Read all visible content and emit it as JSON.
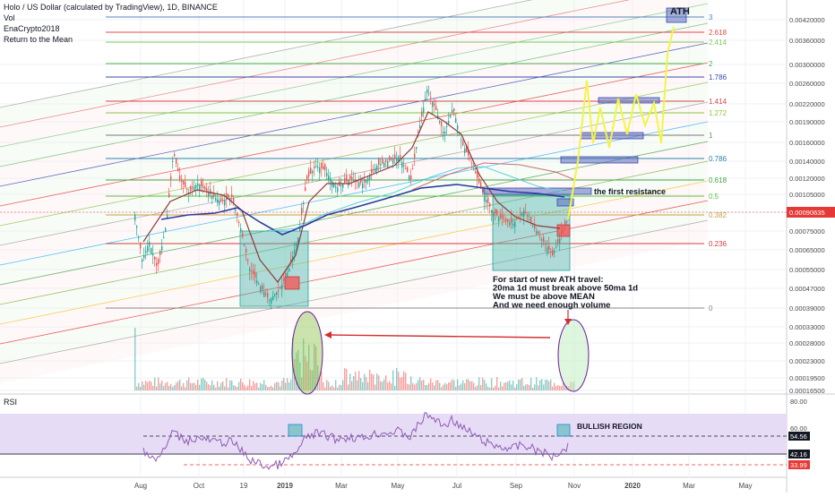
{
  "header": {
    "title": "Holo / US Dollar (calculated by TradingView), 1D, BINANCE",
    "vol_label": "Vol",
    "author": "EnaCrypto2018",
    "idea_name": "Return to the Mean"
  },
  "chart_data": [
    {
      "type": "line",
      "title": "Holo / US Dollar (calculated by TradingView), 1D, BINANCE",
      "x_ticks": [
        "Aug",
        "Oct",
        "19",
        "2019",
        "Mar",
        "May",
        "Jul",
        "Sep",
        "Nov",
        "2020",
        "Mar",
        "May"
      ],
      "y_ticks": [
        "0.00420000",
        "0.00360000",
        "0.00300000",
        "0.00260000",
        "0.00220000",
        "0.00190000",
        "0.00160000",
        "0.00140000",
        "0.00120000",
        "0.00105000",
        "0.00090635",
        "0.00075000",
        "0.00065000",
        "0.00055000",
        "0.00047000",
        "0.00039000",
        "0.00033000",
        "0.00028000",
        "0.00023000",
        "0.00019500",
        "0.00016500"
      ],
      "last_price": "0.00090635",
      "fib_levels": [
        {
          "label": "3",
          "color": "#5a7fbd"
        },
        {
          "label": "2.618",
          "color": "#e04848"
        },
        {
          "label": "2.414",
          "color": "#7ec85a"
        },
        {
          "label": "2",
          "color": "#4caf50"
        },
        {
          "label": "1.786",
          "color": "#3b4ba6"
        },
        {
          "label": "1.414",
          "color": "#d64545"
        },
        {
          "label": "1.272",
          "color": "#8bc34a"
        },
        {
          "label": "1",
          "color": "#787878"
        },
        {
          "label": "0.786",
          "color": "#2d7fa8"
        },
        {
          "label": "0.618",
          "color": "#3fa640"
        },
        {
          "label": "0.5",
          "color": "#5cbf38"
        },
        {
          "label": "0.382",
          "color": "#c8a040"
        },
        {
          "label": "0.236",
          "color": "#d03c3c"
        },
        {
          "label": "0",
          "color": "#888888"
        }
      ],
      "annotations": {
        "ath": "ATH",
        "first_resistance": "the first resistance",
        "note_lines": [
          "For start of new ATH travel:",
          "20ma 1d must break above 50ma 1d",
          "We must be above MEAN",
          "And we need enough volume"
        ]
      }
    },
    {
      "type": "line",
      "title": "RSI",
      "y_ticks": [
        "80.00",
        "60.00",
        "42.16",
        "33.99"
      ],
      "current_values": {
        "rsi": "54.56",
        "level_a": "42.16",
        "level_b": "33.99"
      },
      "annotation": "BULLISH REGION"
    }
  ],
  "colors": {
    "grid": "#eef0f4",
    "candle_up": "#26a69a",
    "candle_down": "#ef5350",
    "ma_fast": "#8b3a3a",
    "ma_slow": "#2b3a9e",
    "ma_mean": "#5fd3e0",
    "rsi_line": "#8e5bb5",
    "rsi_band": "#e7dcf5",
    "last_price": "#e53935",
    "projection": "#f2f547"
  }
}
